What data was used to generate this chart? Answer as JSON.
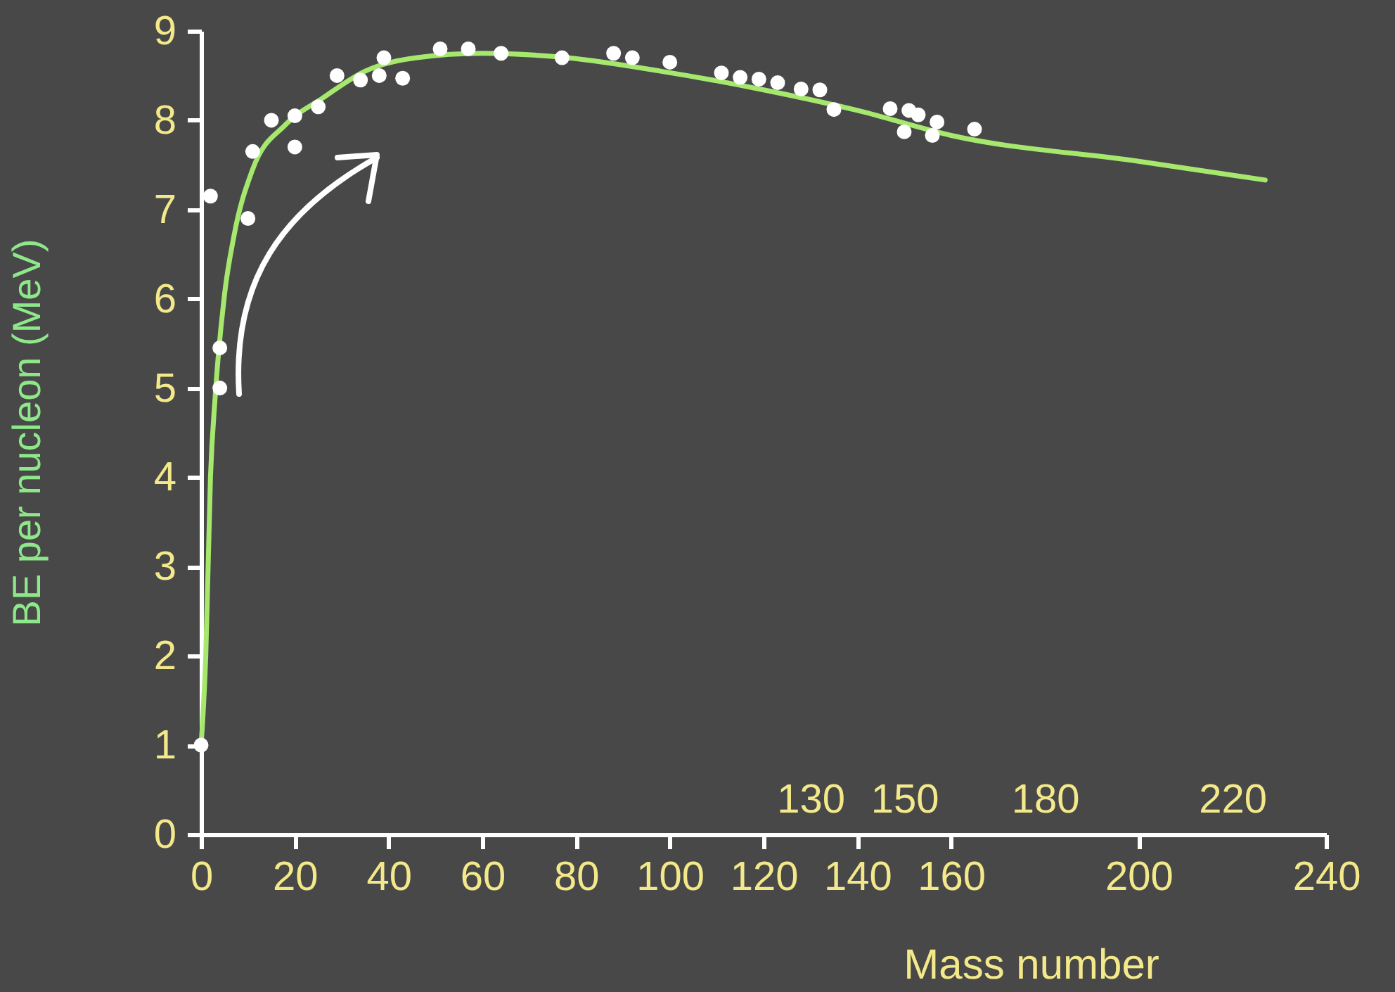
{
  "chart_data": {
    "type": "scatter",
    "xlabel": "Mass number",
    "ylabel": "BE per nucleon (MeV)",
    "xlim": [
      0,
      240
    ],
    "xticks": [
      0,
      20,
      40,
      60,
      80,
      100,
      120,
      140,
      160,
      200,
      240
    ],
    "x2lim": [
      0,
      240
    ],
    "x2ticks": [
      130,
      150,
      180,
      220
    ],
    "ylim": [
      0,
      9
    ],
    "yticks": [
      0,
      1,
      2,
      3,
      4,
      5,
      6,
      7,
      8,
      9
    ],
    "grid": false,
    "series": [
      {
        "type": "line",
        "color": "#a6e86e",
        "line_style": "solid",
        "x": [
          0,
          1,
          2,
          3,
          5,
          7,
          11,
          18,
          26,
          35,
          46,
          60,
          78,
          98,
          120,
          140,
          160,
          200,
          227
        ],
        "values": [
          1,
          2,
          4,
          4.9,
          6.05,
          6.7,
          7.45,
          7.95,
          8.25,
          8.55,
          8.7,
          8.75,
          8.7,
          8.55,
          8.34,
          8.11,
          7.83,
          7.54,
          7.33
        ]
      },
      {
        "marker": "circle",
        "color": "#ffffff",
        "x": [
          0,
          2,
          4,
          4,
          10,
          11,
          15,
          20,
          20,
          25,
          29,
          34,
          38,
          39,
          43,
          51,
          57,
          64,
          77,
          88,
          92,
          100,
          111,
          115,
          119,
          123,
          128,
          132,
          135,
          147,
          151,
          153,
          150,
          157,
          156,
          165
        ],
        "values": [
          1,
          7.15,
          5.45,
          5,
          6.9,
          7.65,
          8,
          7.7,
          8.05,
          8.15,
          8.5,
          8.45,
          8.5,
          8.7,
          8.47,
          8.8,
          8.8,
          8.75,
          8.7,
          8.75,
          8.7,
          8.65,
          8.53,
          8.48,
          8.46,
          8.42,
          8.35,
          8.34,
          8.12,
          8.13,
          8.11,
          8.06,
          7.87,
          7.98,
          7.83,
          7.9
        ]
      }
    ]
  }
}
